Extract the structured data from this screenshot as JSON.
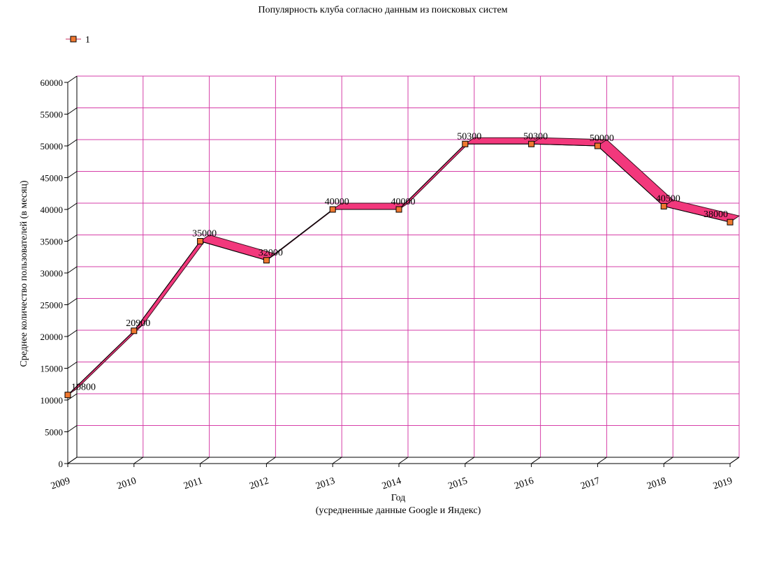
{
  "chart_data": {
    "type": "line",
    "title": "Популярность клуба согласно данным из поисковых систем",
    "xlabel": "Год",
    "xlabel_sub": "(усредненные данные Google и Яндекс)",
    "ylabel": "Среднее количество пользователей (в месяц)",
    "ylim": [
      0,
      60000
    ],
    "ytick_step": 5000,
    "grid": true,
    "legend_position": "top-left",
    "categories": [
      "2009",
      "2010",
      "2011",
      "2012",
      "2013",
      "2014",
      "2015",
      "2016",
      "2017",
      "2018",
      "2019"
    ],
    "series": [
      {
        "name": "1",
        "values": [
          10800,
          20900,
          35000,
          32000,
          40000,
          40000,
          50300,
          50300,
          50000,
          40500,
          38000
        ],
        "labels": [
          "10800",
          "20900",
          "35000",
          "32000",
          "40000",
          "40000",
          "50300",
          "50300",
          "50000",
          "40500",
          "38000"
        ],
        "ribbon_color": "#f2387c",
        "marker_color": "#f07830"
      }
    ],
    "grid_color": "#d63fa8"
  }
}
